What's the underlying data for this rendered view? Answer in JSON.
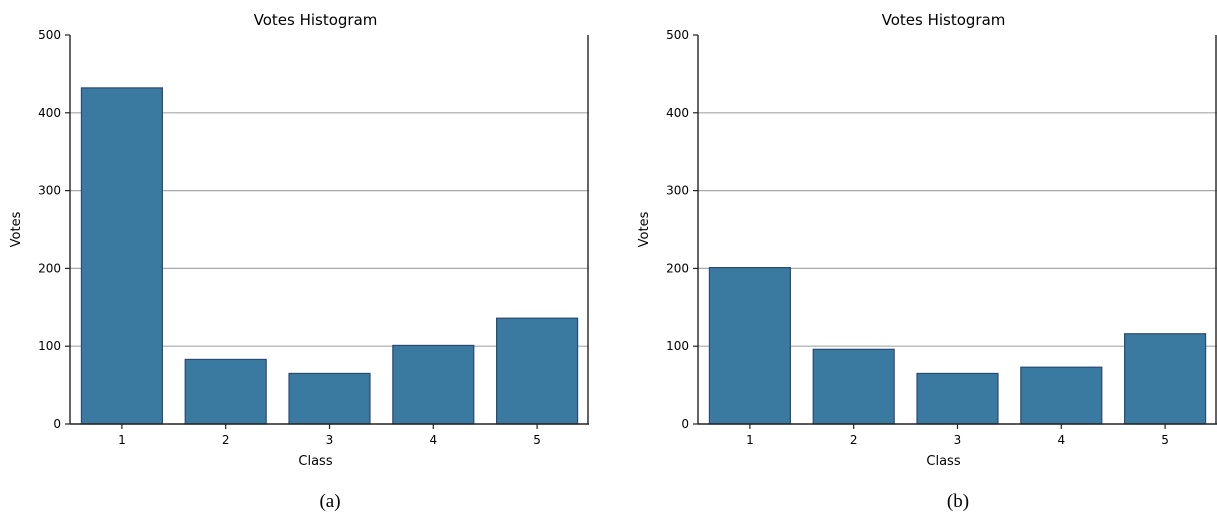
{
  "chart_data": [
    {
      "type": "bar",
      "title": "Votes Histogram",
      "xlabel": "Class",
      "ylabel": "Votes",
      "categories": [
        "1",
        "2",
        "3",
        "4",
        "5"
      ],
      "values": [
        432,
        83,
        65,
        101,
        136
      ],
      "ylim": [
        0,
        500
      ],
      "yticks": [
        0,
        100,
        200,
        300,
        400,
        500
      ],
      "grid": "y",
      "bar_color": "#3b7aa0",
      "bar_edge_color": "#2a4a73",
      "caption": "(a)"
    },
    {
      "type": "bar",
      "title": "Votes Histogram",
      "xlabel": "Class",
      "ylabel": "Votes",
      "categories": [
        "1",
        "2",
        "3",
        "4",
        "5"
      ],
      "values": [
        201,
        96,
        65,
        73,
        116
      ],
      "ylim": [
        0,
        500
      ],
      "yticks": [
        0,
        100,
        200,
        300,
        400,
        500
      ],
      "grid": "y",
      "bar_color": "#3b7aa0",
      "bar_edge_color": "#2a4a73",
      "caption": "(b)"
    }
  ]
}
